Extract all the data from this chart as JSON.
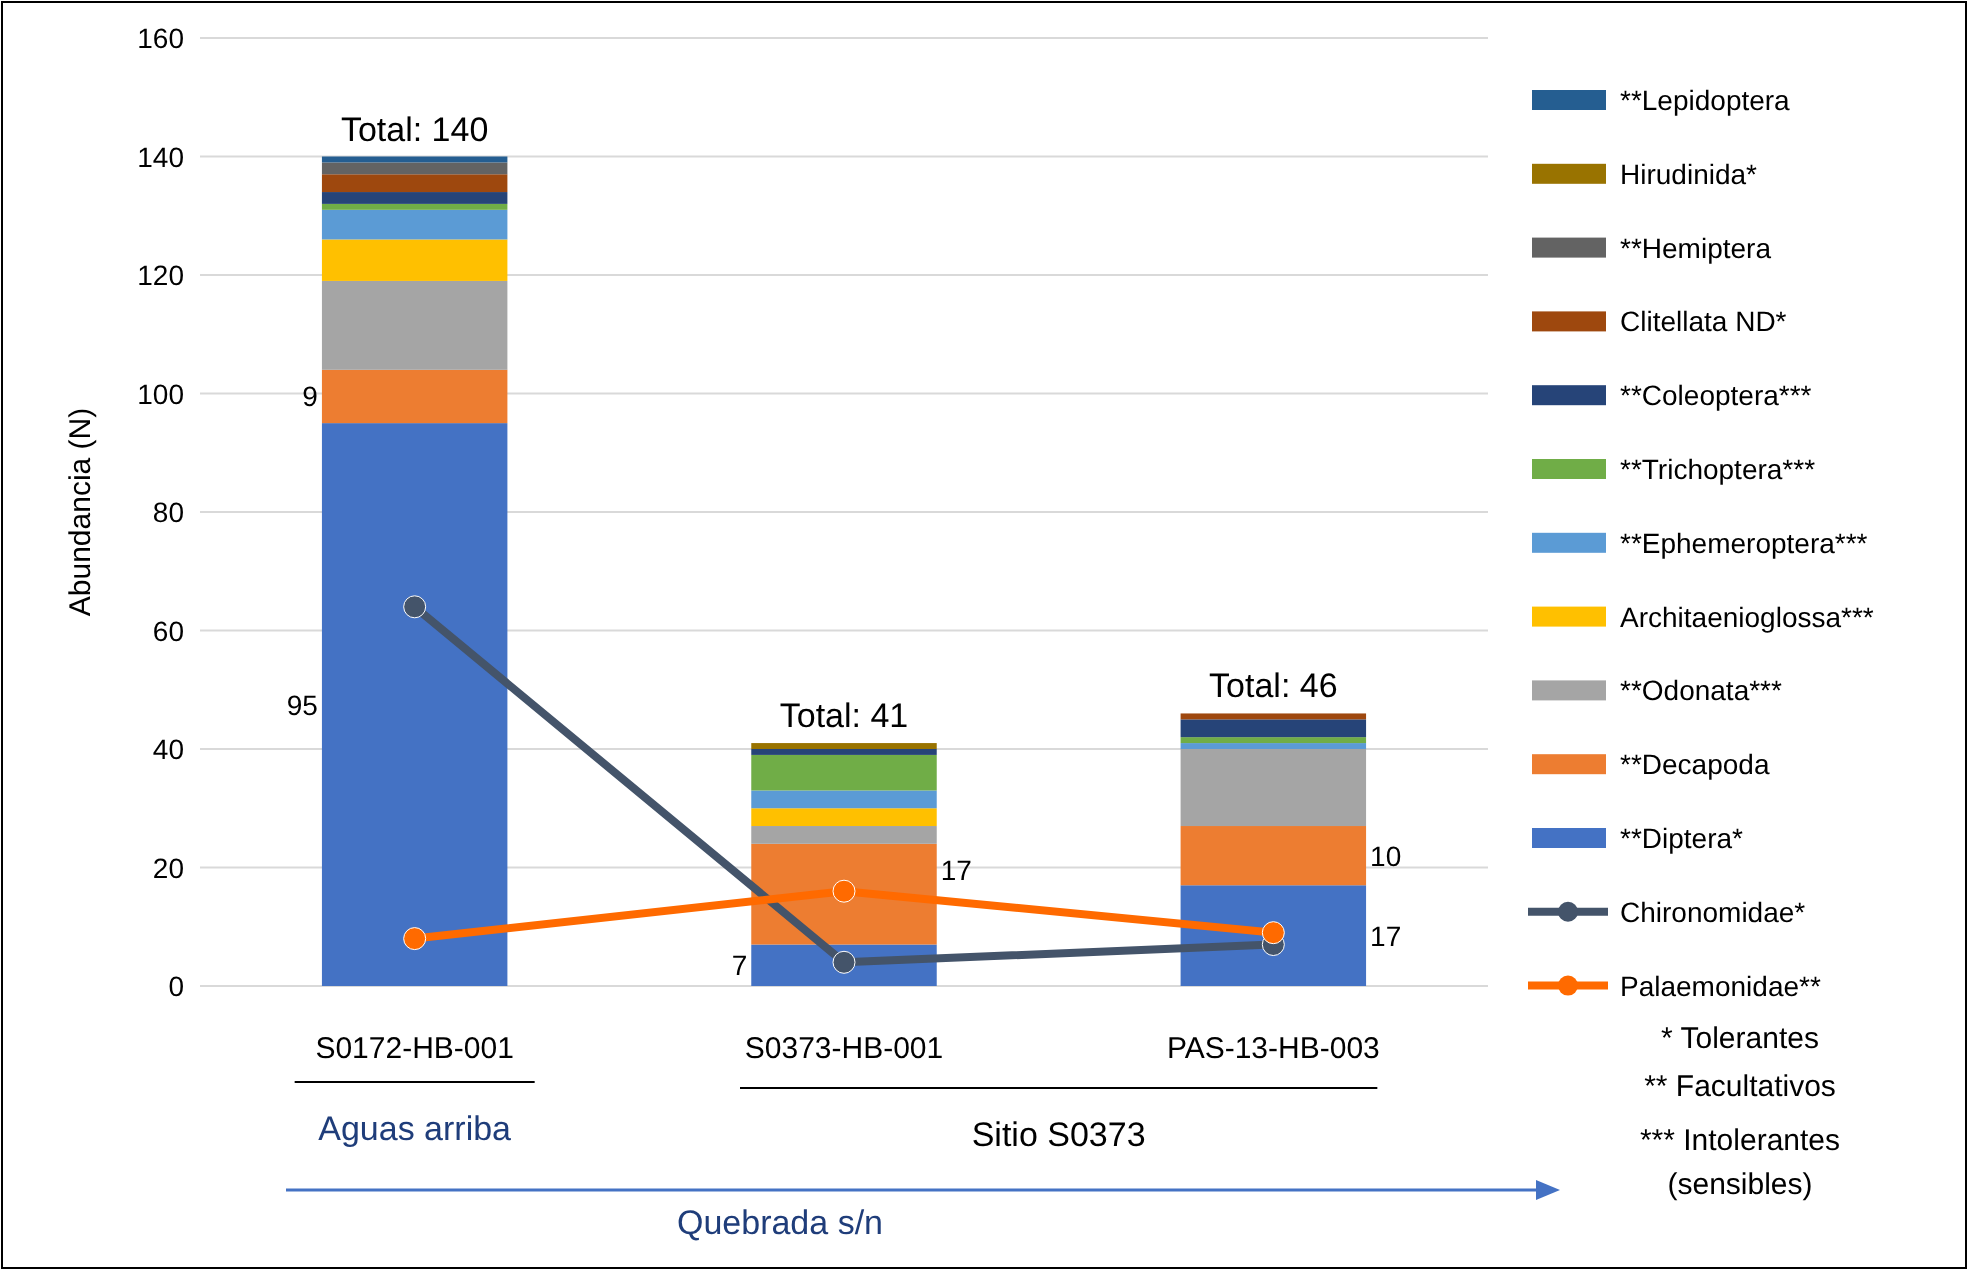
{
  "chart_data": {
    "type": "bar",
    "stacked": true,
    "ylabel": "Abundancia (N)",
    "categories": [
      "S0172-HB-001",
      "S0373-HB-001",
      "PAS-13-HB-003"
    ],
    "ylim": [
      0,
      160
    ],
    "yticks": [
      0,
      20,
      40,
      60,
      80,
      100,
      120,
      140,
      160
    ],
    "grid": "y",
    "legend": "right",
    "marker": "circle",
    "series": [
      {
        "name": "**Diptera*",
        "color": "#4472c4",
        "values": [
          95,
          7,
          17
        ],
        "value_labels": [
          "95",
          "7",
          "17"
        ]
      },
      {
        "name": "**Decapoda",
        "color": "#ed7d31",
        "values": [
          9,
          17,
          10
        ],
        "value_labels": [
          "9",
          "17",
          "10"
        ]
      },
      {
        "name": "**Odonata***",
        "color": "#a5a5a5",
        "values": [
          15,
          3,
          13
        ]
      },
      {
        "name": "Architaenioglossa***",
        "color": "#ffc000",
        "values": [
          7,
          3,
          0
        ]
      },
      {
        "name": "**Ephemeroptera***",
        "color": "#5b9bd5",
        "values": [
          5,
          3,
          1
        ]
      },
      {
        "name": "**Trichoptera***",
        "color": "#70ad47",
        "values": [
          1,
          6,
          1
        ]
      },
      {
        "name": "**Coleoptera***",
        "color": "#264478",
        "values": [
          2,
          1,
          3
        ]
      },
      {
        "name": "Clitellata ND*",
        "color": "#9e480e",
        "values": [
          3,
          0,
          1
        ]
      },
      {
        "name": "**Hemiptera",
        "color": "#636363",
        "values": [
          2,
          0,
          0
        ]
      },
      {
        "name": "Hirudinida*",
        "color": "#997300",
        "values": [
          0,
          1,
          0
        ]
      },
      {
        "name": "**Lepidoptera",
        "color": "#255e91",
        "values": [
          1,
          0,
          0
        ]
      },
      {
        "name": "Chironomidae*",
        "type": "line",
        "color": "#44546a",
        "values": [
          64,
          4,
          7
        ]
      },
      {
        "name": "Palaemonidae**",
        "type": "line",
        "color": "#ff6a00",
        "values": [
          8,
          16,
          9
        ]
      }
    ],
    "totals": [
      "Total: 140",
      "Total: 41",
      "Total: 46"
    ],
    "annotations": [
      "Aguas arriba",
      "Sitio S0373",
      "Quebrada s/n",
      "* Tolerantes",
      "** Facultativos",
      "*** Intolerantes (sensibles)"
    ]
  }
}
